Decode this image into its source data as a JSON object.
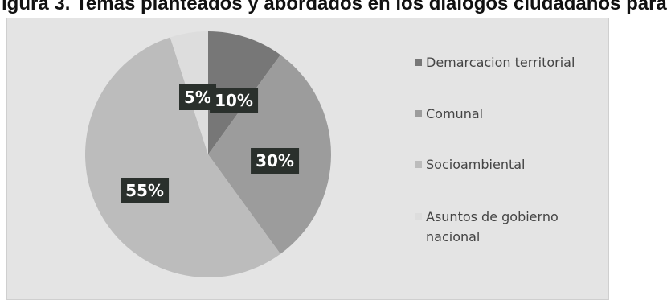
{
  "caption": "igura 3. Temas planteados y abordados en los diálogos ciudadanos para",
  "chart_data": {
    "type": "pie",
    "categories": [
      "Demarcacion territorial",
      "Comunal",
      "Socioambiental",
      "Asuntos de gobierno nacional"
    ],
    "values": [
      10,
      30,
      55,
      5
    ],
    "value_labels": [
      "10%",
      "30%",
      "55%",
      "5%"
    ],
    "colors": [
      "#777777",
      "#9c9c9c",
      "#bcbcbc",
      "#dddddd"
    ],
    "title": "",
    "legend_position": "right",
    "start_angle_deg": 0,
    "direction": "clockwise"
  }
}
